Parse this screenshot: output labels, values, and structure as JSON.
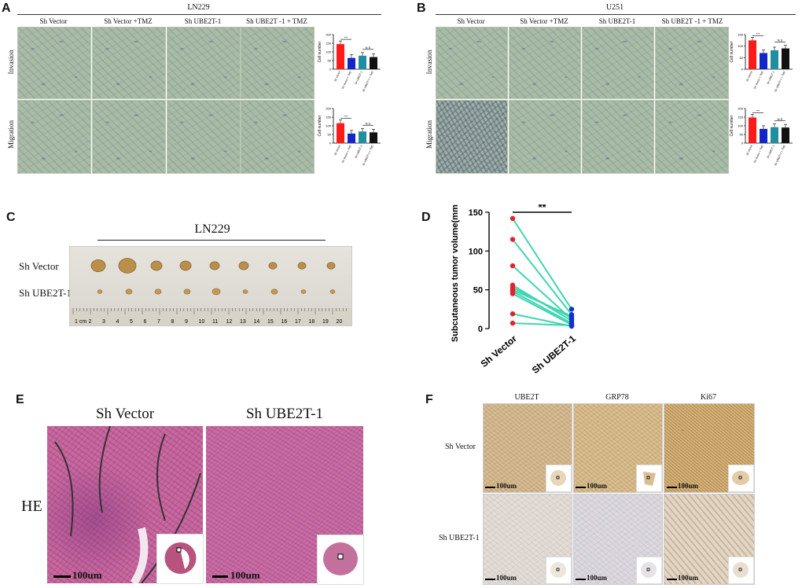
{
  "panel_labels": {
    "a": "A",
    "b": "B",
    "c": "C",
    "d": "D",
    "e": "E",
    "f": "F"
  },
  "panel_a": {
    "title": "LN229",
    "columns": [
      "Sh Vector",
      "Sh Vector +TMZ",
      "Sh UBE2T-1",
      "Sh UBE2T -1 + TMZ"
    ],
    "rows": [
      "Invasion",
      "Migration"
    ]
  },
  "panel_b": {
    "title": "U251",
    "columns": [
      "Sh Vector",
      "Sh Vector +TMZ",
      "Sh UBE2T-1",
      "Sh UBE2T -1 + TMZ"
    ],
    "rows": [
      "Invasion",
      "Migration"
    ]
  },
  "chart_data": [
    {
      "type": "bar",
      "panel": "A-invasion",
      "categories": [
        "Sh Vector",
        "Sh Vector + TMZ",
        "Sh UBE2T-1",
        "Sh UBE2T-1 + TMZ"
      ],
      "values": [
        145,
        65,
        78,
        70
      ],
      "colors": [
        "#ff1a1a",
        "#1426c8",
        "#1f8fa0",
        "#111111"
      ],
      "ylabel": "Cell number",
      "ylim": [
        0,
        200
      ],
      "yticks": [
        0,
        50,
        100,
        150,
        200
      ],
      "annotations": [
        "***",
        "N.S"
      ]
    },
    {
      "type": "bar",
      "panel": "A-migration",
      "categories": [
        "Sh Vector",
        "Sh Vector + TMZ",
        "Sh UBE2T-1",
        "Sh UBE2T-1 + TMZ"
      ],
      "values": [
        115,
        55,
        67,
        62
      ],
      "colors": [
        "#ff1a1a",
        "#1426c8",
        "#1f8fa0",
        "#111111"
      ],
      "ylabel": "Cell number",
      "ylim": [
        0,
        200
      ],
      "yticks": [
        0,
        50,
        100,
        150,
        200
      ],
      "annotations": [
        "***",
        "N.S"
      ]
    },
    {
      "type": "bar",
      "panel": "B-invasion",
      "categories": [
        "Sh Vector",
        "Sh Vector + TMZ",
        "Sh UBE2T-1",
        "Sh UBE2T-1 + TMZ"
      ],
      "values": [
        125,
        70,
        82,
        90
      ],
      "colors": [
        "#ff1a1a",
        "#1426c8",
        "#1f8fa0",
        "#111111"
      ],
      "ylabel": "Cell number",
      "ylim": [
        0,
        150
      ],
      "yticks": [
        0,
        50,
        100,
        150
      ],
      "annotations": [
        "***",
        "N.S"
      ]
    },
    {
      "type": "bar",
      "panel": "B-migration",
      "categories": [
        "Sh Vector",
        "Sh Vector + TMZ",
        "Sh UBE2T-1",
        "Sh UBE2T-1 + TMZ"
      ],
      "values": [
        148,
        82,
        92,
        90
      ],
      "colors": [
        "#ff1a1a",
        "#1426c8",
        "#1f8fa0",
        "#111111"
      ],
      "ylabel": "Cell number",
      "ylim": [
        0,
        200
      ],
      "yticks": [
        0,
        50,
        100,
        150,
        200
      ],
      "annotations": [
        "***",
        "N.S"
      ]
    },
    {
      "type": "scatter",
      "panel": "D",
      "categories": [
        "Sh Vector",
        "Sh UBE2T-1"
      ],
      "pairs": [
        [
          142,
          25
        ],
        [
          115,
          18
        ],
        [
          81,
          12
        ],
        [
          56,
          10
        ],
        [
          53,
          14
        ],
        [
          50,
          16
        ],
        [
          48,
          7
        ],
        [
          45,
          5
        ],
        [
          19,
          3
        ],
        [
          7,
          4
        ]
      ],
      "colors": {
        "left": "#e8202a",
        "right": "#1232c8",
        "line": "#3ed6b0"
      },
      "ylabel": "Subcutaneous tumor volume(mm³)",
      "ylim": [
        0,
        150
      ],
      "yticks": [
        0,
        50,
        100,
        150
      ],
      "annotation": "**"
    }
  ],
  "panel_c": {
    "title": "LN229",
    "rows": [
      "Sh Vector",
      "Sh UBE2T-1"
    ],
    "ruler": [
      "1 cm",
      "2",
      "3",
      "4",
      "5",
      "6",
      "7",
      "8",
      "9",
      "10",
      "11",
      "12",
      "13",
      "14",
      "15",
      "16",
      "17",
      "18",
      "19",
      "20"
    ]
  },
  "panel_e": {
    "columns": [
      "Sh Vector",
      "Sh UBE2T-1"
    ],
    "row": "HE",
    "scale": "100um"
  },
  "panel_f": {
    "columns": [
      "UBE2T",
      "GRP78",
      "Ki67"
    ],
    "rows": [
      "Sh Vector",
      "Sh UBE2T-1"
    ],
    "scale": "100um"
  }
}
